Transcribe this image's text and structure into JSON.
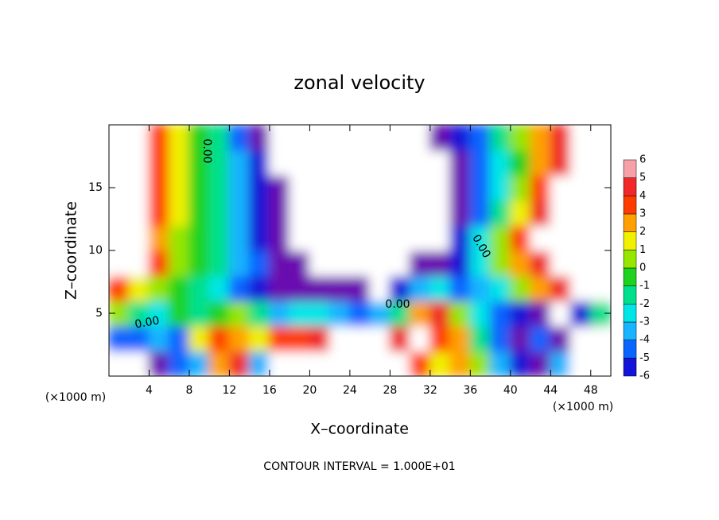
{
  "chart_data": {
    "type": "contourf",
    "title": "zonal velocity",
    "xlabel": "X–coordinate",
    "ylabel": "Z–coordinate",
    "xunit": "(×1000 m)",
    "yunit": "(×1000 m)",
    "footnote": "CONTOUR INTERVAL = 1.000E+01",
    "contour_labels": [
      "0.00",
      "0.00",
      "0.00",
      "0.00"
    ],
    "xlim": [
      0,
      50
    ],
    "ylim": [
      0,
      20
    ],
    "xticks": [
      4,
      8,
      12,
      16,
      20,
      24,
      28,
      32,
      36,
      40,
      44,
      48
    ],
    "yticks": [
      5,
      10,
      15
    ],
    "x": [
      1,
      3,
      5,
      7,
      9,
      11,
      13,
      15,
      17,
      19,
      21,
      23,
      25,
      27,
      29,
      31,
      33,
      35,
      37,
      39,
      41,
      43,
      45,
      47,
      49
    ],
    "y": [
      1,
      3,
      5,
      7,
      9,
      11,
      13,
      15,
      17,
      19
    ],
    "z": [
      [
        -8,
        -8,
        -6,
        -3,
        -2,
        4,
        6,
        -2,
        8,
        8,
        8,
        8,
        8,
        8,
        8,
        5,
        3,
        4,
        2,
        -2,
        -4,
        -6,
        -2,
        -8,
        -8
      ],
      [
        -3,
        -3,
        -2,
        -3,
        3,
        5,
        4,
        3,
        5,
        5,
        6,
        8,
        8,
        8,
        6,
        8,
        5,
        4,
        0,
        -3,
        -5,
        -3,
        -6,
        -8,
        -8
      ],
      [
        2,
        0,
        -1,
        1,
        0,
        1,
        2,
        0,
        -2,
        -1,
        -1,
        -2,
        -3,
        -2,
        0,
        4,
        6,
        2,
        -1,
        -3,
        -4,
        -5,
        -8,
        -4,
        0
      ],
      [
        5,
        3,
        2,
        1,
        0,
        -1,
        -3,
        -4,
        -5,
        -5,
        -5,
        -6,
        -6,
        -8,
        -4,
        -2,
        -1,
        -3,
        -2,
        -1,
        2,
        4,
        6,
        8,
        8
      ],
      [
        8,
        8,
        5,
        2,
        1,
        0,
        -2,
        -3,
        -5,
        -6,
        -8,
        -8,
        -8,
        -8,
        -8,
        -6,
        -5,
        -4,
        -1,
        2,
        4,
        6,
        8,
        8,
        8
      ],
      [
        8,
        8,
        4,
        2,
        1,
        0,
        -2,
        -4,
        -6,
        -8,
        -8,
        -8,
        -8,
        -8,
        -8,
        -8,
        -8,
        -4,
        -1,
        2,
        5,
        8,
        8,
        8,
        8
      ],
      [
        8,
        8,
        5,
        3,
        1,
        0,
        -2,
        -4,
        -6,
        -8,
        -8,
        -8,
        -8,
        -8,
        -8,
        -8,
        -8,
        -5,
        -3,
        0,
        3,
        6,
        8,
        8,
        8
      ],
      [
        8,
        8,
        5,
        3,
        1,
        0,
        -2,
        -4,
        -6,
        -8,
        -8,
        -8,
        -8,
        -8,
        -8,
        -8,
        -8,
        -6,
        -3,
        -1,
        2,
        5,
        8,
        8,
        8
      ],
      [
        8,
        8,
        5,
        3,
        1,
        0,
        -2,
        -4,
        -8,
        -8,
        -8,
        -8,
        -8,
        -8,
        -8,
        -8,
        -8,
        -6,
        -3,
        -1,
        1,
        4,
        6,
        8,
        8
      ],
      [
        8,
        8,
        5,
        3,
        1,
        0,
        -3,
        -5,
        -8,
        -8,
        -8,
        -8,
        -8,
        -8,
        -8,
        -8,
        -6,
        -4,
        -3,
        0,
        2,
        4,
        6,
        8,
        8
      ]
    ],
    "levels": [
      -6,
      -5,
      -4,
      -3,
      -2,
      -1,
      0,
      1,
      2,
      3,
      4,
      5,
      6
    ],
    "colors": [
      "#6a0fb0",
      "#1414d8",
      "#0a64ff",
      "#18b4ff",
      "#00e6e6",
      "#00e08c",
      "#1ed21e",
      "#96e600",
      "#f0f000",
      "#ffa000",
      "#ff3c00",
      "#f02828",
      "#f8a0a8"
    ]
  }
}
